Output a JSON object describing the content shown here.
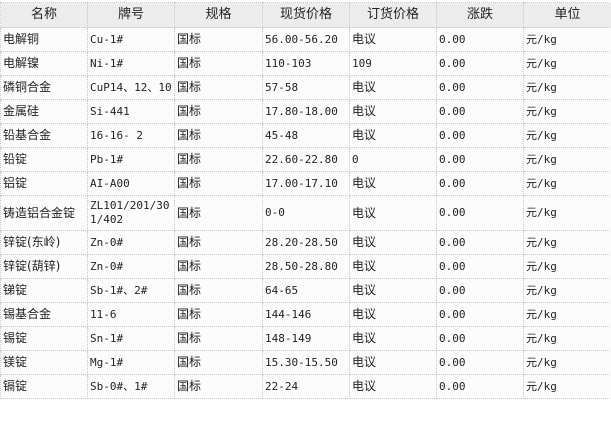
{
  "headers": [
    "名称",
    "牌号",
    "规格",
    "现货价格",
    "订货价格",
    "涨跌",
    "单位"
  ],
  "rows": [
    [
      "电解铜",
      "Cu-1#",
      "国标",
      "56.00-56.20",
      "电议",
      "0.00",
      "元/kg"
    ],
    [
      "电解镍",
      "Ni-1#",
      "国标",
      "110-103",
      "109",
      "0.00",
      "元/kg"
    ],
    [
      "磷铜合金",
      "CuP14、12、10",
      "国标",
      "57-58",
      "电议",
      "0.00",
      "元/kg"
    ],
    [
      "金属硅",
      "Si-441",
      "国标",
      "17.80-18.00",
      "电议",
      "0.00",
      "元/kg"
    ],
    [
      "铅基合金",
      "16-16- 2",
      "国标",
      "45-48",
      "电议",
      "0.00",
      "元/kg"
    ],
    [
      "铅锭",
      "Pb-1#",
      "国标",
      "22.60-22.80",
      "0",
      "0.00",
      "元/kg"
    ],
    [
      "铝锭",
      "AI-A00",
      "国标",
      "17.00-17.10",
      "电议",
      "0.00",
      "元/kg"
    ],
    [
      "铸造铝合金锭",
      "ZL101/201/301/402",
      "国标",
      "0-0",
      "电议",
      "0.00",
      "元/kg"
    ],
    [
      "锌锭(东岭)",
      "Zn-0#",
      "国标",
      "28.20-28.50",
      "电议",
      "0.00",
      "元/kg"
    ],
    [
      "锌锭(葫锌)",
      "Zn-0#",
      "国标",
      "28.50-28.80",
      "电议",
      "0.00",
      "元/kg"
    ],
    [
      "锑锭",
      "Sb-1#、2#",
      "国标",
      "64-65",
      "电议",
      "0.00",
      "元/kg"
    ],
    [
      "锡基合金",
      "11-6",
      "国标",
      "144-146",
      "电议",
      "0.00",
      "元/kg"
    ],
    [
      "锡锭",
      "Sn-1#",
      "国标",
      "148-149",
      "电议",
      "0.00",
      "元/kg"
    ],
    [
      "镁锭",
      "Mg-1#",
      "国标",
      "15.30-15.50",
      "电议",
      "0.00",
      "元/kg"
    ],
    [
      "镉锭",
      "Sb-0#、1#",
      "国标",
      "22-24",
      "电议",
      "0.00",
      "元/kg"
    ]
  ]
}
